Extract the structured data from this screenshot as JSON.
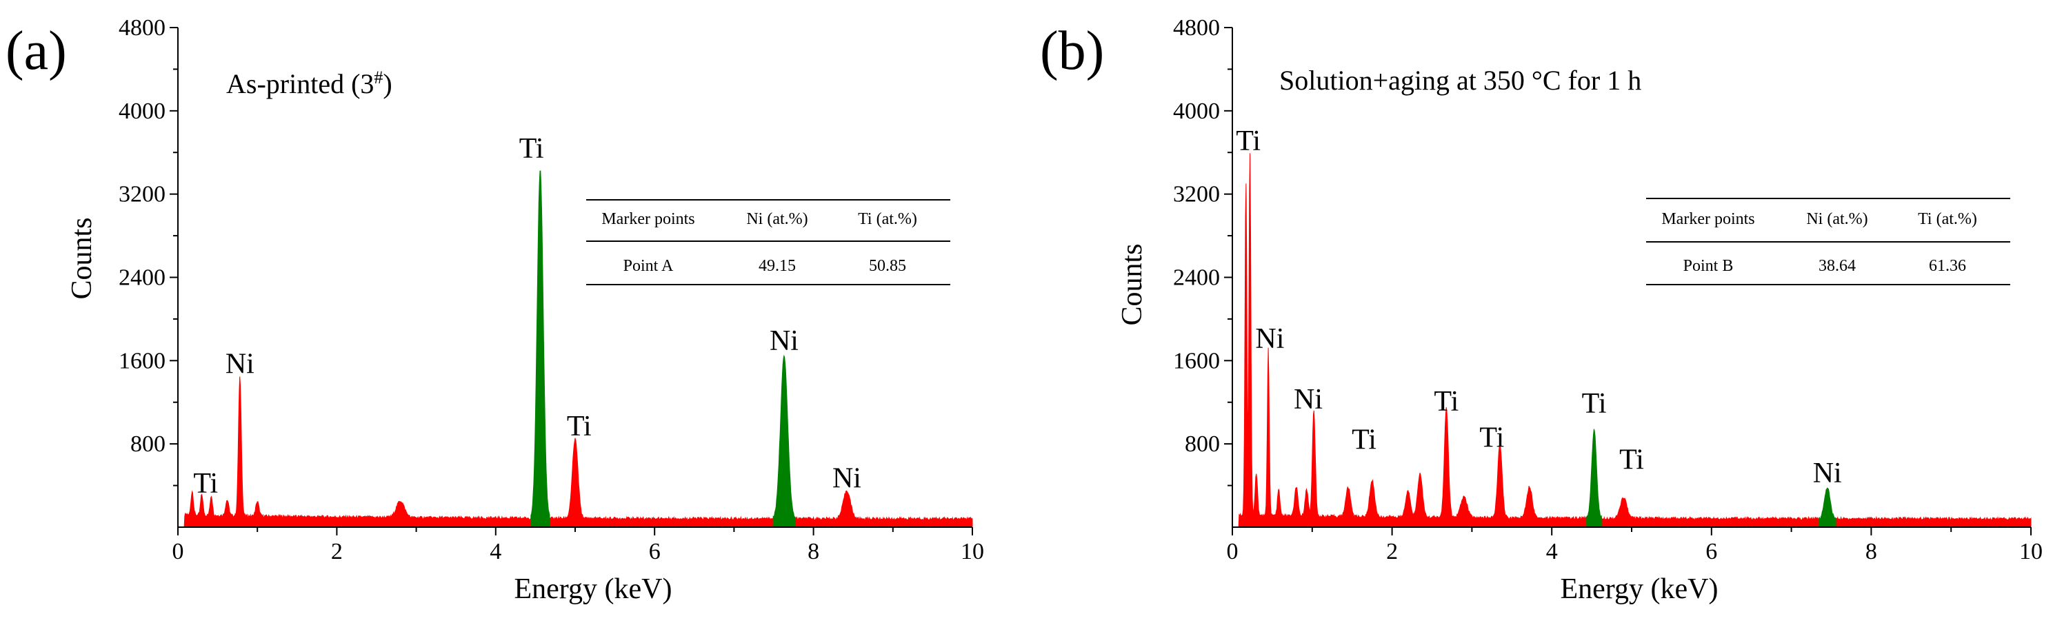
{
  "chart_data": [
    {
      "type": "area",
      "panel_label": "(a)",
      "title_main": "As-printed (3",
      "title_sup": "#",
      "title_end": ")",
      "xlabel": "Energy (keV)",
      "ylabel": "Counts",
      "xlim": [
        0,
        10
      ],
      "ylim": [
        0,
        4800
      ],
      "x_ticks": [
        0,
        2,
        4,
        6,
        8,
        10
      ],
      "y_ticks": [
        800,
        1600,
        2400,
        3200,
        4000,
        4800
      ],
      "baseline": 80,
      "series": [
        {
          "name": "spectrum",
          "color": "#ff0000",
          "peaks": [
            {
              "x": 0.18,
              "y": 230,
              "w": 0.015
            },
            {
              "x": 0.3,
              "y": 200,
              "w": 0.015
            },
            {
              "x": 0.42,
              "y": 190,
              "w": 0.015
            },
            {
              "x": 0.62,
              "y": 150,
              "w": 0.02
            },
            {
              "x": 0.78,
              "y": 1330,
              "w": 0.018
            },
            {
              "x": 1.0,
              "y": 140,
              "w": 0.02
            },
            {
              "x": 2.8,
              "y": 160,
              "w": 0.05
            },
            {
              "x": 5.0,
              "y": 760,
              "w": 0.035
            },
            {
              "x": 8.42,
              "y": 270,
              "w": 0.045
            }
          ]
        },
        {
          "name": "highlighted",
          "color": "#008000",
          "peaks": [
            {
              "x": 4.56,
              "y": 3350,
              "w": 0.038
            },
            {
              "x": 7.63,
              "y": 1560,
              "w": 0.045
            }
          ]
        }
      ],
      "annotations": [
        {
          "text": "Ti",
          "x": 0.35,
          "y": 330
        },
        {
          "text": "Ni",
          "x": 0.78,
          "y": 1480
        },
        {
          "text": "Ti",
          "x": 4.45,
          "y": 3550
        },
        {
          "text": "Ti",
          "x": 5.05,
          "y": 880
        },
        {
          "text": "Ni",
          "x": 7.63,
          "y": 1700
        },
        {
          "text": "Ni",
          "x": 8.42,
          "y": 380
        }
      ],
      "table": {
        "headers": [
          "Marker points",
          "Ni (at.%)",
          "Ti (at.%)"
        ],
        "rows": [
          [
            "Point A",
            "49.15",
            "50.85"
          ]
        ]
      }
    },
    {
      "type": "area",
      "panel_label": "(b)",
      "title_main": "Solution+aging at 350 °C for 1 h",
      "title_sup": "",
      "title_end": "",
      "xlabel": "Energy (keV)",
      "ylabel": "Counts",
      "xlim": [
        0,
        10
      ],
      "ylim": [
        0,
        4800
      ],
      "x_ticks": [
        0,
        2,
        4,
        6,
        8,
        10
      ],
      "y_ticks": [
        800,
        1600,
        2400,
        3200,
        4000,
        4800
      ],
      "baseline": 80,
      "series": [
        {
          "name": "spectrum",
          "color": "#ff0000",
          "peaks": [
            {
              "x": 0.17,
              "y": 3200,
              "w": 0.012
            },
            {
              "x": 0.22,
              "y": 3500,
              "w": 0.012
            },
            {
              "x": 0.3,
              "y": 400,
              "w": 0.015
            },
            {
              "x": 0.45,
              "y": 1600,
              "w": 0.012
            },
            {
              "x": 0.58,
              "y": 250,
              "w": 0.015
            },
            {
              "x": 0.8,
              "y": 280,
              "w": 0.02
            },
            {
              "x": 0.93,
              "y": 250,
              "w": 0.02
            },
            {
              "x": 1.02,
              "y": 1020,
              "w": 0.018
            },
            {
              "x": 1.45,
              "y": 280,
              "w": 0.03
            },
            {
              "x": 1.75,
              "y": 350,
              "w": 0.03
            },
            {
              "x": 2.2,
              "y": 250,
              "w": 0.03
            },
            {
              "x": 2.35,
              "y": 420,
              "w": 0.03
            },
            {
              "x": 2.68,
              "y": 1050,
              "w": 0.025
            },
            {
              "x": 2.9,
              "y": 200,
              "w": 0.04
            },
            {
              "x": 3.35,
              "y": 700,
              "w": 0.028
            },
            {
              "x": 3.72,
              "y": 300,
              "w": 0.035
            },
            {
              "x": 4.9,
              "y": 200,
              "w": 0.04
            }
          ]
        },
        {
          "name": "highlighted",
          "color": "#008000",
          "peaks": [
            {
              "x": 4.53,
              "y": 850,
              "w": 0.03
            },
            {
              "x": 7.45,
              "y": 300,
              "w": 0.035
            }
          ]
        }
      ],
      "annotations": [
        {
          "text": "Ti",
          "x": 0.2,
          "y": 3620
        },
        {
          "text": "Ni",
          "x": 0.47,
          "y": 1720
        },
        {
          "text": "Ni",
          "x": 0.95,
          "y": 1140
        },
        {
          "text": "Ti",
          "x": 1.65,
          "y": 750
        },
        {
          "text": "Ti",
          "x": 2.68,
          "y": 1120
        },
        {
          "text": "Ti",
          "x": 3.25,
          "y": 770
        },
        {
          "text": "Ti",
          "x": 4.53,
          "y": 1100
        },
        {
          "text": "Ti",
          "x": 5.0,
          "y": 560
        },
        {
          "text": "Ni",
          "x": 7.45,
          "y": 430
        }
      ],
      "table": {
        "headers": [
          "Marker points",
          "Ni (at.%)",
          "Ti (at.%)"
        ],
        "rows": [
          [
            "Point B",
            "38.64",
            "61.36"
          ]
        ]
      }
    }
  ]
}
